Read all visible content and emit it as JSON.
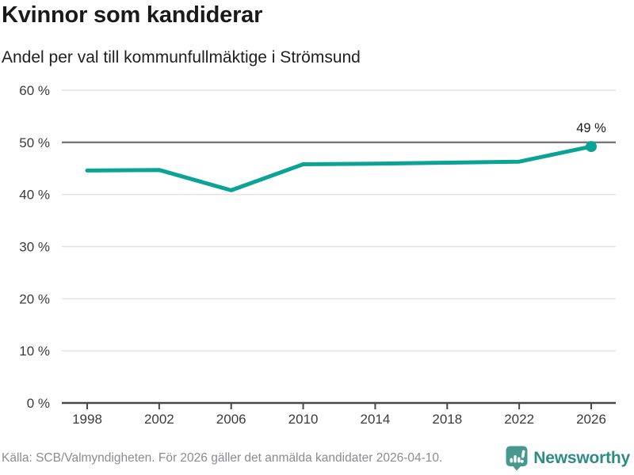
{
  "header": {
    "title": "Kvinnor som kandiderar",
    "subtitle": "Andel per val till kommunfullmäktige i Strömsund"
  },
  "chart_data": {
    "type": "line",
    "title": "Kvinnor som kandiderar",
    "subtitle": "Andel per val till kommunfullmäktige i Strömsund",
    "categories": [
      "1998",
      "2002",
      "2006",
      "2010",
      "2014",
      "2018",
      "2022",
      "2026"
    ],
    "values": [
      44.6,
      44.7,
      40.8,
      45.8,
      45.9,
      46.1,
      46.3,
      49.2
    ],
    "end_label": "49 %",
    "xlabel": "",
    "ylabel": "",
    "ylim": [
      0,
      60
    ],
    "ytick_step": 10,
    "ytick_suffix": " %",
    "grid": "horizontal",
    "highlight_gridline": 50,
    "legend": "none",
    "colors": {
      "line": "#0aa396",
      "marker": "#0aa396",
      "grid_light": "#e2e2e2",
      "grid_highlight": "#76777a",
      "axis": "#48484a",
      "tick_label": "#3b3b3b",
      "end_label": "#1a1a1a"
    }
  },
  "footer": {
    "source": "Källa: SCB/Valmyndigheten. För 2026 gäller det anmälda kandidater 2026-04-10.",
    "brand": "Newsworthy",
    "brand_color": "#2e8c83",
    "icon": "newsworthy-chart-bubble-icon",
    "icon_color": "#47988e"
  }
}
